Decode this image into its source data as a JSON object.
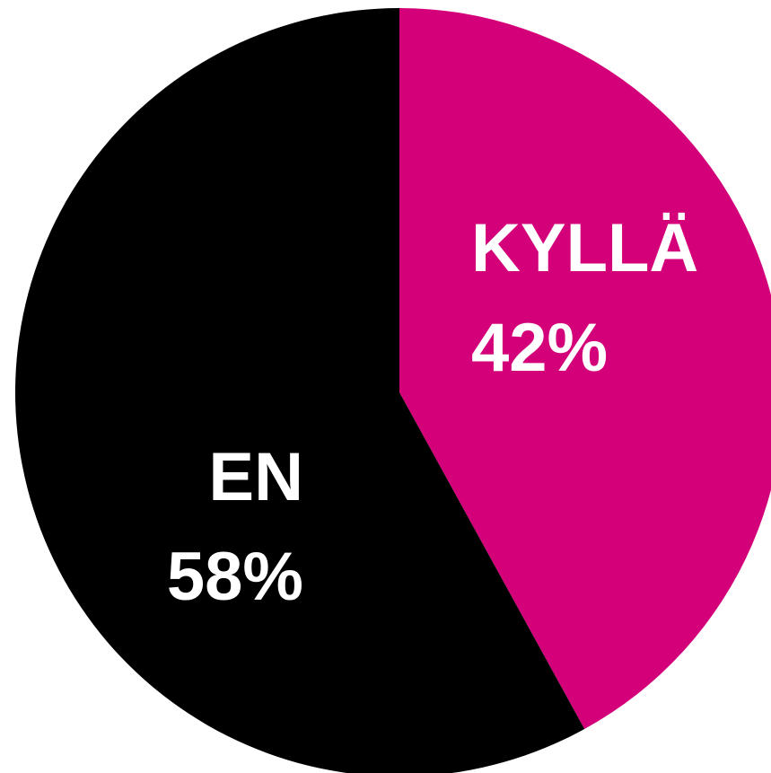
{
  "chart_data": {
    "type": "pie",
    "categories": [
      "KYLLÄ",
      "EN"
    ],
    "values": [
      42,
      58
    ],
    "value_labels": [
      "42%",
      "58%"
    ],
    "colors": [
      "#d4007a",
      "#000000"
    ]
  }
}
